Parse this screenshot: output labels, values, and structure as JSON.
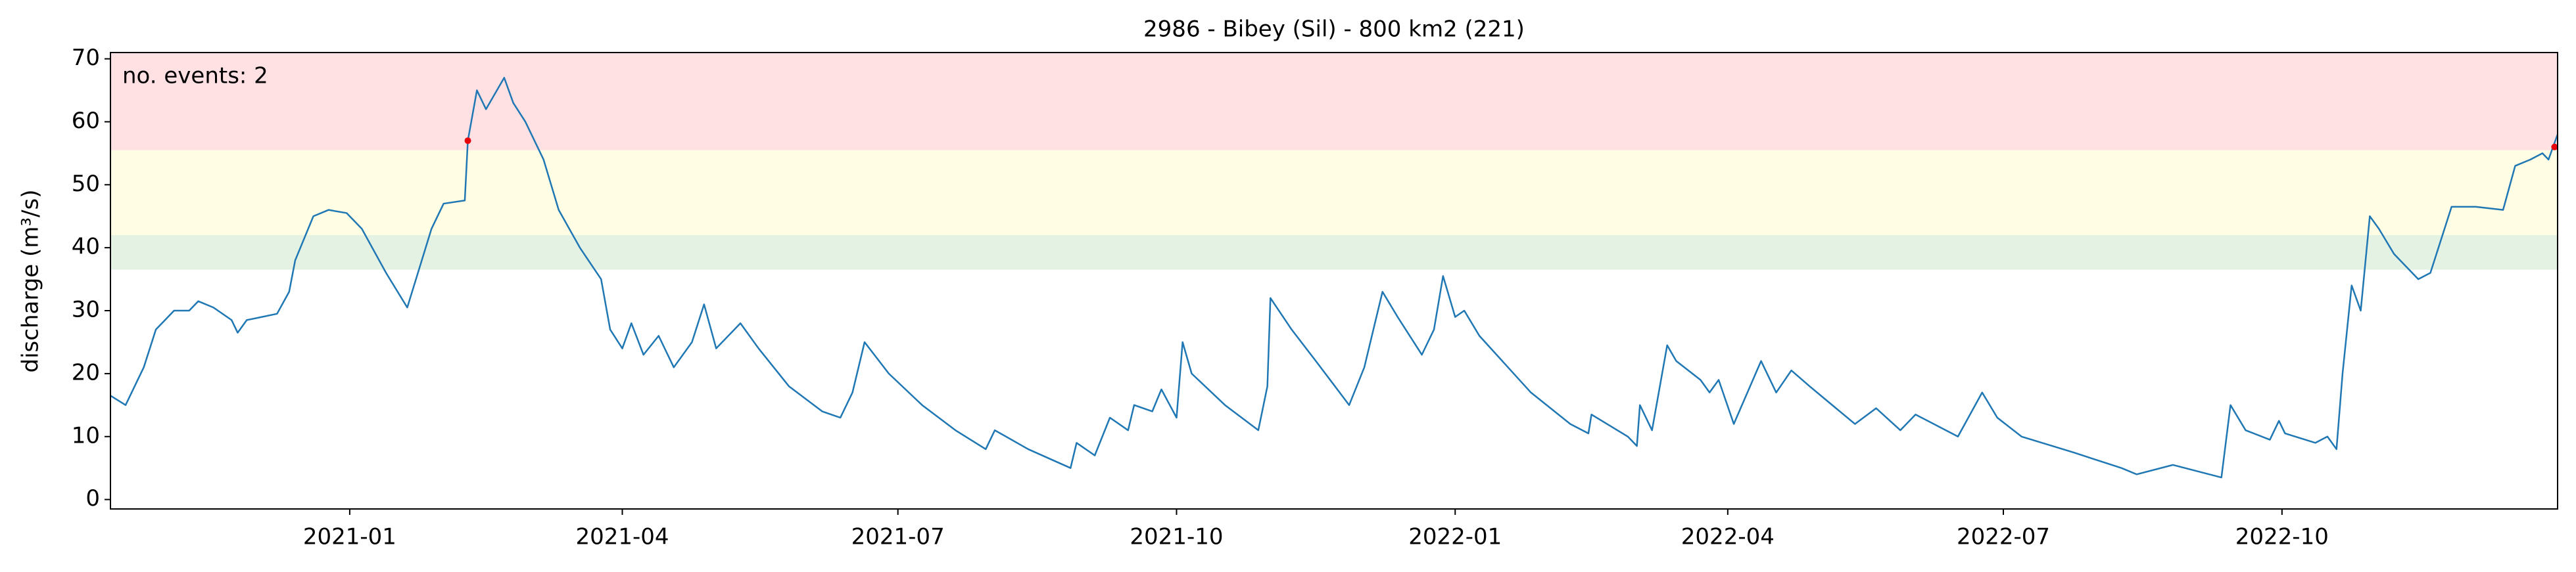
{
  "chart_data": {
    "type": "line",
    "title": "2986 - Bibey (Sil) - 800 km2 (221)",
    "ylabel": "discharge (m³/s)",
    "annotation": "no. events: 2",
    "annotation_color": "#e8000b",
    "color": "#1f77b4",
    "x": [
      "2020-10-14",
      "2020-10-19",
      "2020-10-25",
      "2020-10-29",
      "2020-11-04",
      "2020-11-09",
      "2020-11-12",
      "2020-11-17",
      "2020-11-23",
      "2020-11-25",
      "2020-11-28",
      "2020-12-03",
      "2020-12-08",
      "2020-12-12",
      "2020-12-14",
      "2020-12-20",
      "2020-12-25",
      "2020-12-31",
      "2021-01-05",
      "2021-01-13",
      "2021-01-20",
      "2021-01-28",
      "2021-02-01",
      "2021-02-08",
      "2021-02-09",
      "2021-02-12",
      "2021-02-15",
      "2021-02-21",
      "2021-02-24",
      "2021-02-28",
      "2021-03-06",
      "2021-03-11",
      "2021-03-18",
      "2021-03-25",
      "2021-03-28",
      "2021-04-01",
      "2021-04-04",
      "2021-04-08",
      "2021-04-13",
      "2021-04-18",
      "2021-04-24",
      "2021-04-28",
      "2021-05-02",
      "2021-05-10",
      "2021-05-16",
      "2021-05-26",
      "2021-06-06",
      "2021-06-12",
      "2021-06-16",
      "2021-06-20",
      "2021-06-28",
      "2021-07-09",
      "2021-07-20",
      "2021-07-30",
      "2021-08-02",
      "2021-08-13",
      "2021-08-27",
      "2021-08-29",
      "2021-09-04",
      "2021-09-09",
      "2021-09-15",
      "2021-09-17",
      "2021-09-23",
      "2021-09-26",
      "2021-10-01",
      "2021-10-03",
      "2021-10-06",
      "2021-10-17",
      "2021-10-28",
      "2021-10-31",
      "2021-11-01",
      "2021-11-08",
      "2021-11-16",
      "2021-11-27",
      "2021-12-02",
      "2021-12-08",
      "2021-12-13",
      "2021-12-21",
      "2021-12-25",
      "2021-12-28",
      "2022-01-01",
      "2022-01-04",
      "2022-01-09",
      "2022-01-26",
      "2022-02-08",
      "2022-02-14",
      "2022-02-15",
      "2022-02-27",
      "2022-03-02",
      "2022-03-03",
      "2022-03-07",
      "2022-03-12",
      "2022-03-15",
      "2022-03-23",
      "2022-03-26",
      "2022-03-29",
      "2022-04-03",
      "2022-04-12",
      "2022-04-17",
      "2022-04-22",
      "2022-04-28",
      "2022-05-03",
      "2022-05-13",
      "2022-05-20",
      "2022-05-28",
      "2022-06-02",
      "2022-06-16",
      "2022-06-24",
      "2022-06-29",
      "2022-07-07",
      "2022-07-24",
      "2022-08-09",
      "2022-08-14",
      "2022-08-26",
      "2022-09-11",
      "2022-09-14",
      "2022-09-19",
      "2022-09-27",
      "2022-09-30",
      "2022-10-02",
      "2022-10-12",
      "2022-10-16",
      "2022-10-19",
      "2022-10-21",
      "2022-10-24",
      "2022-10-27",
      "2022-10-30",
      "2022-11-02",
      "2022-11-07",
      "2022-11-15",
      "2022-11-19",
      "2022-11-26",
      "2022-12-04",
      "2022-12-13",
      "2022-12-17",
      "2022-12-22",
      "2022-12-26",
      "2022-12-28",
      "2022-12-31"
    ],
    "values": [
      16.5,
      15,
      21,
      27,
      30,
      30,
      31.5,
      30.5,
      28.5,
      26.5,
      28.5,
      29,
      29.5,
      33,
      38,
      45,
      46,
      45.5,
      43,
      36,
      30.5,
      43,
      47,
      47.5,
      57,
      65,
      62,
      67,
      63,
      60,
      54,
      46,
      40,
      35,
      27,
      24,
      28,
      23,
      26,
      21,
      25,
      31,
      24,
      28,
      24,
      18,
      14,
      13,
      17,
      25,
      20,
      15,
      11,
      8,
      11,
      8,
      5,
      9,
      7,
      13,
      11,
      15,
      14,
      17.5,
      13,
      25,
      20,
      15,
      11,
      18,
      32,
      27,
      22,
      15,
      21,
      33,
      29,
      23,
      27,
      35.5,
      29,
      30,
      26,
      17,
      12,
      10.5,
      13.5,
      10,
      8.5,
      15,
      11,
      24.5,
      22,
      19,
      17,
      19,
      12,
      22,
      17,
      20.5,
      18,
      16,
      12,
      14.5,
      11,
      13.5,
      10,
      17,
      13,
      10,
      7.5,
      5,
      4,
      5.5,
      3.5,
      15,
      11,
      9.5,
      12.5,
      10.5,
      9,
      10,
      8,
      20,
      34,
      30,
      45,
      43,
      39,
      35,
      36,
      46.5,
      46.5,
      46,
      53,
      54,
      55,
      54,
      58
    ],
    "bands": [
      {
        "from": 36.5,
        "to": 42,
        "color": "#e4f2e4"
      },
      {
        "from": 42,
        "to": 55.5,
        "color": "#fffde3"
      },
      {
        "from": 55.5,
        "to": 71,
        "color": "#ffe1e4"
      }
    ],
    "events": {
      "x": [
        "2021-02-09",
        "2022-12-30"
      ],
      "values": [
        57,
        56
      ],
      "color": "#e8000b"
    },
    "xlim": [
      "2020-10-14",
      "2022-12-31"
    ],
    "xticks": [
      {
        "value": "2021-01-01",
        "label": "2021-01"
      },
      {
        "value": "2021-04-01",
        "label": "2021-04"
      },
      {
        "value": "2021-07-01",
        "label": "2021-07"
      },
      {
        "value": "2021-10-01",
        "label": "2021-10"
      },
      {
        "value": "2022-01-01",
        "label": "2022-01"
      },
      {
        "value": "2022-04-01",
        "label": "2022-04"
      },
      {
        "value": "2022-07-01",
        "label": "2022-07"
      },
      {
        "value": "2022-10-01",
        "label": "2022-10"
      }
    ],
    "ylim": [
      -1.5,
      71
    ],
    "yticks": [
      0,
      10,
      20,
      30,
      40,
      50,
      60,
      70
    ],
    "grid": false
  }
}
